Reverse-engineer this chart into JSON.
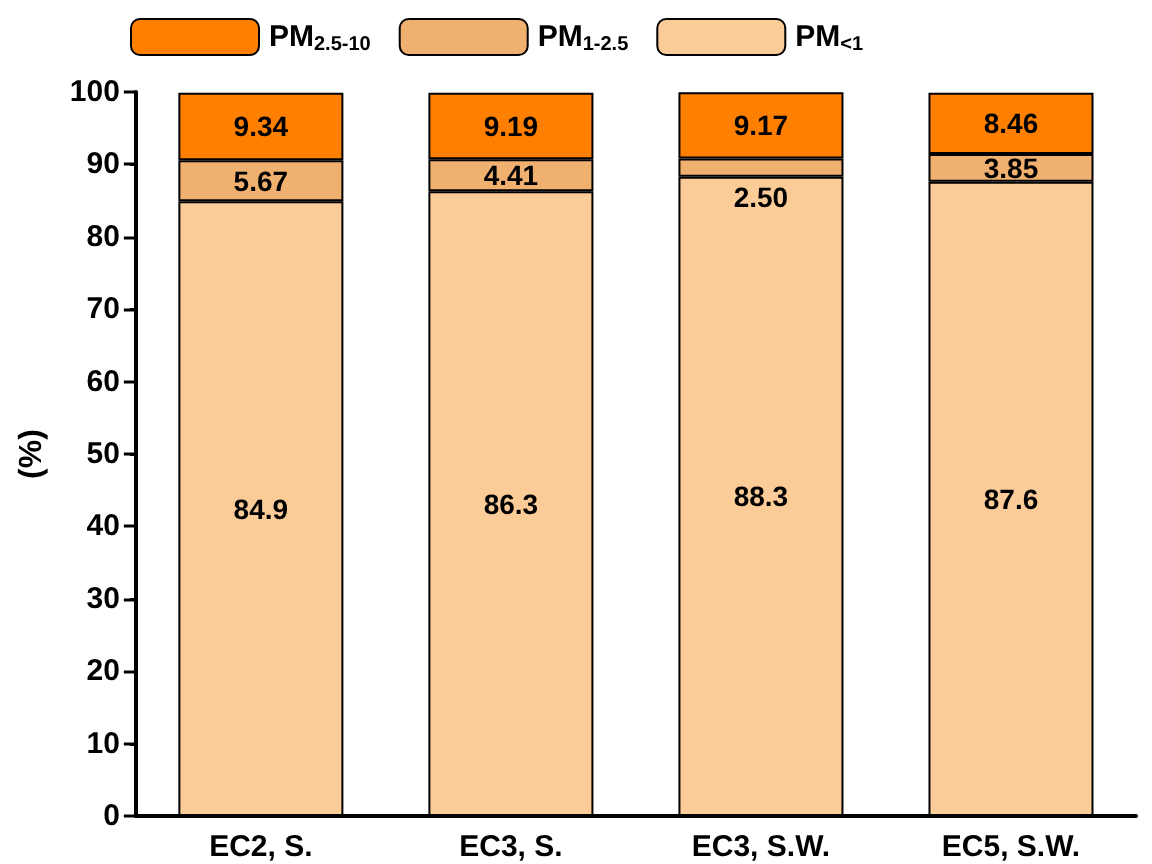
{
  "chart_data": {
    "type": "bar",
    "stacked": true,
    "ylabel": "(%)",
    "categories": [
      "EC2, S.",
      "EC3, S.",
      "EC3, S.W.",
      "EC5, S.W."
    ],
    "series": [
      {
        "name": "PM$_{<1}$",
        "color": "#fbcb98",
        "values": [
          84.9,
          86.3,
          88.3,
          87.6
        ],
        "value_labels": [
          "84.9",
          "86.3",
          "88.3",
          "87.6"
        ]
      },
      {
        "name": "PM$_{1-2.5}$",
        "color": "#f0b070",
        "values": [
          5.67,
          4.41,
          2.5,
          3.85
        ],
        "value_labels": [
          "5.67",
          "4.41",
          "2.50",
          "3.85"
        ]
      },
      {
        "name": "PM$_{2.5-10}$",
        "color": "#ff8000",
        "values": [
          9.34,
          9.19,
          9.17,
          8.46
        ],
        "value_labels": [
          "9.34",
          "9.19",
          "9.17",
          "8.46"
        ]
      }
    ],
    "ylim": [
      0,
      100
    ],
    "yticks": [
      0,
      10,
      20,
      30,
      40,
      50,
      60,
      70,
      80,
      90,
      100
    ],
    "grid": false,
    "legend": "top"
  }
}
